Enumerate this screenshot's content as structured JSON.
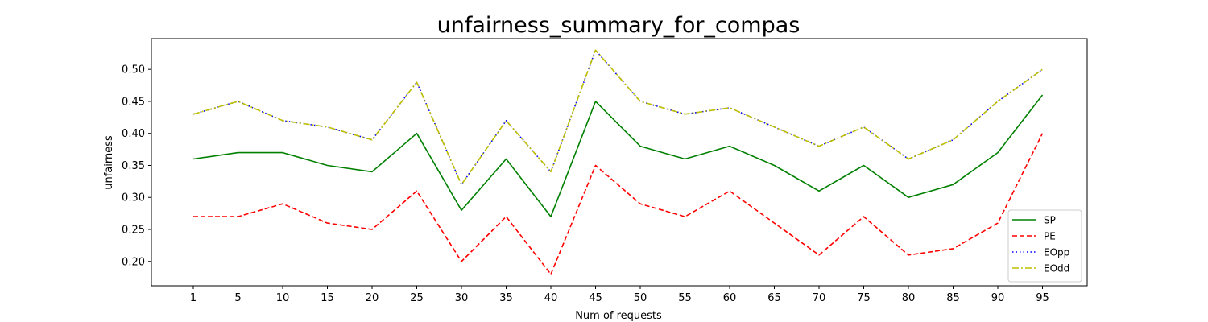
{
  "chart_data": {
    "type": "line",
    "title": "unfairness_summary_for_compas",
    "xlabel": "Num of requests",
    "ylabel": "unfairness",
    "categories": [
      "1",
      "5",
      "10",
      "15",
      "20",
      "25",
      "30",
      "35",
      "40",
      "45",
      "50",
      "55",
      "60",
      "65",
      "70",
      "75",
      "80",
      "85",
      "90",
      "95"
    ],
    "yticks": [
      "0.20",
      "0.25",
      "0.30",
      "0.35",
      "0.40",
      "0.45",
      "0.50"
    ],
    "ylim": [
      0.162,
      0.548
    ],
    "grid": false,
    "legend_position": "lower-right",
    "series": [
      {
        "name": "SP",
        "color": "#008000",
        "dash": "solid",
        "values": [
          0.36,
          0.37,
          0.37,
          0.35,
          0.34,
          0.4,
          0.28,
          0.36,
          0.27,
          0.45,
          0.38,
          0.36,
          0.38,
          0.35,
          0.31,
          0.35,
          0.3,
          0.32,
          0.37,
          0.46
        ]
      },
      {
        "name": "PE",
        "color": "#ff0000",
        "dash": "dashed",
        "values": [
          0.27,
          0.27,
          0.29,
          0.26,
          0.25,
          0.31,
          0.2,
          0.27,
          0.18,
          0.35,
          0.29,
          0.27,
          0.31,
          0.26,
          0.21,
          0.27,
          0.21,
          0.22,
          0.26,
          0.4
        ]
      },
      {
        "name": "EOpp",
        "color": "#0000ff",
        "dash": "dotted",
        "values": [
          0.43,
          0.45,
          0.42,
          0.41,
          0.39,
          0.48,
          0.32,
          0.42,
          0.34,
          0.53,
          0.45,
          0.43,
          0.44,
          0.41,
          0.38,
          0.41,
          0.36,
          0.39,
          0.45,
          0.5
        ]
      },
      {
        "name": " EOdd",
        "color": "#bfbf00",
        "dash": "dashdot",
        "values": [
          0.43,
          0.45,
          0.42,
          0.41,
          0.39,
          0.48,
          0.32,
          0.42,
          0.34,
          0.53,
          0.45,
          0.43,
          0.44,
          0.41,
          0.38,
          0.41,
          0.36,
          0.39,
          0.45,
          0.5
        ]
      }
    ]
  }
}
